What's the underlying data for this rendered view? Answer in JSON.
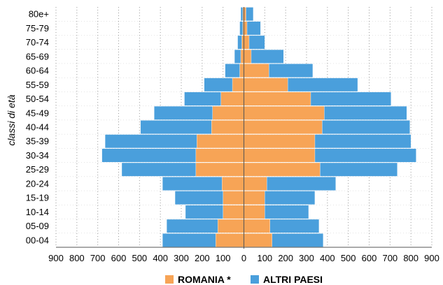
{
  "chart_data": {
    "type": "bar",
    "orientation": "horizontal-pyramid",
    "ylabel": "classi di età",
    "xlabel": "",
    "title": "",
    "categories": [
      "00-04",
      "05-09",
      "10-14",
      "15-19",
      "20-24",
      "25-29",
      "30-34",
      "35-39",
      "40-44",
      "45-49",
      "50-54",
      "55-59",
      "60-64",
      "65-69",
      "70-74",
      "75-79",
      "80e+"
    ],
    "xlim": [
      -900,
      900
    ],
    "x_ticks": [
      -900,
      -800,
      -700,
      -600,
      -500,
      -400,
      -300,
      -200,
      -100,
      0,
      100,
      200,
      300,
      400,
      500,
      600,
      700,
      800,
      900
    ],
    "x_tick_labels": [
      "900",
      "800",
      "700",
      "600",
      "500",
      "400",
      "300",
      "200",
      "100",
      "0",
      "100",
      "200",
      "300",
      "400",
      "500",
      "600",
      "700",
      "800",
      "900"
    ],
    "series": [
      {
        "name": "ROMANIA *",
        "color": "#f7a456",
        "left": [
          -135,
          -125,
          -100,
          -100,
          -105,
          -230,
          -230,
          -225,
          -155,
          -150,
          -110,
          -55,
          -20,
          -15,
          -10,
          -5,
          -5
        ],
        "right": [
          135,
          125,
          100,
          100,
          110,
          365,
          340,
          340,
          375,
          385,
          320,
          210,
          120,
          35,
          25,
          15,
          10
        ]
      },
      {
        "name": "ALTRI PAESI",
        "color": "#4a9fdc",
        "left": [
          -390,
          -370,
          -280,
          -330,
          -390,
          -585,
          -680,
          -665,
          -495,
          -430,
          -285,
          -190,
          -90,
          -45,
          -30,
          -20,
          -15
        ],
        "right": [
          380,
          360,
          310,
          340,
          440,
          735,
          825,
          800,
          795,
          780,
          705,
          545,
          330,
          190,
          100,
          80,
          45
        ]
      }
    ],
    "grid": true,
    "legend": "bottom"
  }
}
